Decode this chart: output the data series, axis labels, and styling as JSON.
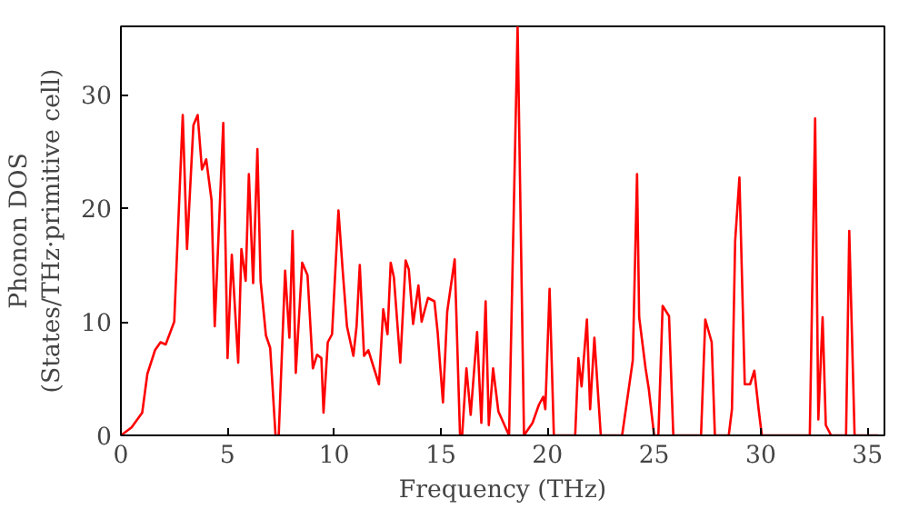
{
  "chart_data": {
    "type": "line",
    "xlabel": "Frequency (THz)",
    "ylabel": "Phonon DOS\n(States/THz·primitive cell)",
    "xlim": [
      0,
      35.8
    ],
    "ylim": [
      0,
      36
    ],
    "xticks": [
      0,
      5,
      10,
      15,
      20,
      25,
      30,
      35
    ],
    "yticks": [
      0,
      10,
      20,
      30
    ],
    "grid": false,
    "series": [
      {
        "color": "#ff0000",
        "x": [
          0,
          0.5,
          1.0,
          1.24,
          1.6,
          1.86,
          2.1,
          2.5,
          2.9,
          3.1,
          3.4,
          3.6,
          3.8,
          4.0,
          4.25,
          4.4,
          4.8,
          5.0,
          5.2,
          5.5,
          5.65,
          5.85,
          6.0,
          6.2,
          6.4,
          6.55,
          6.8,
          7.0,
          7.25,
          7.4,
          7.7,
          7.9,
          8.05,
          8.2,
          8.5,
          8.75,
          9.0,
          9.2,
          9.4,
          9.5,
          9.7,
          9.9,
          10.2,
          10.4,
          10.6,
          10.9,
          11.05,
          11.2,
          11.4,
          11.6,
          12.1,
          12.3,
          12.5,
          12.65,
          12.8,
          13.1,
          13.35,
          13.5,
          13.7,
          13.95,
          14.1,
          14.4,
          14.7,
          14.85,
          15.1,
          15.3,
          15.65,
          15.9,
          16.0,
          16.2,
          16.4,
          16.7,
          16.9,
          17.1,
          17.25,
          17.45,
          17.7,
          18.2,
          18.6,
          18.9,
          19.3,
          19.6,
          19.8,
          19.9,
          20.1,
          20.3,
          21.3,
          21.45,
          21.6,
          21.85,
          22.0,
          22.2,
          22.5,
          23.5,
          24.0,
          24.2,
          24.3,
          24.6,
          24.75,
          25.0,
          25.2,
          25.4,
          25.7,
          25.9,
          27.2,
          27.4,
          27.7,
          27.85,
          28.5,
          28.65,
          28.8,
          29.0,
          29.25,
          29.5,
          29.7,
          29.9,
          30.05,
          32.3,
          32.55,
          32.7,
          32.9,
          33.05,
          33.3,
          34.0,
          34.15,
          34.4,
          35.5
        ],
        "values": [
          0,
          0.7,
          2.0,
          5.4,
          7.5,
          8.2,
          8.0,
          10,
          28.2,
          16.4,
          27.3,
          28.2,
          23.4,
          24.3,
          20.7,
          9.6,
          27.5,
          6.8,
          15.9,
          6.4,
          16.4,
          13.6,
          23,
          13.4,
          25.2,
          13.6,
          8.8,
          7.7,
          0,
          0,
          14.5,
          8.6,
          18,
          5.5,
          15.2,
          14.1,
          5.9,
          7.1,
          6.8,
          2.0,
          8.2,
          8.9,
          19.8,
          14.5,
          9.6,
          7.0,
          9.6,
          15,
          7.0,
          7.5,
          4.5,
          11.1,
          8.9,
          15.2,
          13.9,
          6.4,
          15.4,
          14.6,
          9.8,
          13.2,
          10,
          12.1,
          11.8,
          9.1,
          2.9,
          10.9,
          15.5,
          0,
          0,
          5.9,
          1.8,
          9.1,
          1.1,
          11.8,
          0.9,
          5.9,
          2.1,
          0,
          36,
          0,
          1.1,
          2.7,
          3.4,
          2.3,
          12.9,
          0,
          0,
          6.8,
          4.3,
          10.2,
          2.3,
          8.6,
          0,
          0,
          6.6,
          23,
          10.4,
          5.9,
          4.1,
          0,
          0,
          11.4,
          10.5,
          0,
          0,
          10.2,
          8.2,
          0,
          0,
          2.3,
          17.1,
          22.7,
          4.5,
          4.5,
          5.7,
          2.3,
          0,
          0,
          27.9,
          1.4,
          10.4,
          0.9,
          0,
          0,
          18,
          0,
          0
        ]
      }
    ]
  }
}
